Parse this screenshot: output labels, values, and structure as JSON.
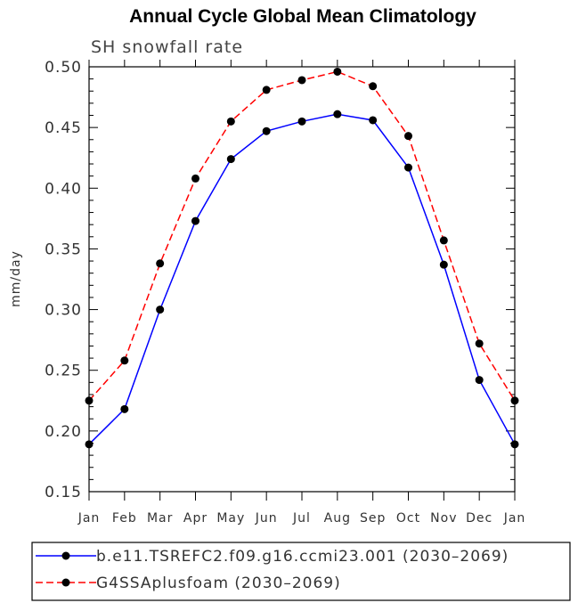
{
  "chart_data": {
    "type": "line",
    "title": "Annual Cycle Global Mean Climatology",
    "subtitle": "SH snowfall rate",
    "xlabel": "",
    "ylabel": "mm/day",
    "categories": [
      "Jan",
      "Feb",
      "Mar",
      "Apr",
      "May",
      "Jun",
      "Jul",
      "Aug",
      "Sep",
      "Oct",
      "Nov",
      "Dec",
      "Jan"
    ],
    "ylim": [
      0.15,
      0.5
    ],
    "yticks": [
      "0.15",
      "0.20",
      "0.25",
      "0.30",
      "0.35",
      "0.40",
      "0.45",
      "0.50"
    ],
    "grid": false,
    "legend_position": "bottom",
    "series": [
      {
        "name": "b.e11.TSREFC2.f09.g16.ccmi23.001 (2030–2069)",
        "color": "#0000ff",
        "line_style": "solid",
        "marker": "filled-circle",
        "values": [
          0.189,
          0.218,
          0.3,
          0.373,
          0.424,
          0.447,
          0.455,
          0.461,
          0.456,
          0.417,
          0.337,
          0.242,
          0.189
        ]
      },
      {
        "name": "G4SSAplusfoam (2030–2069)",
        "color": "#ff0000",
        "line_style": "dashed",
        "marker": "filled-circle",
        "values": [
          0.225,
          0.258,
          0.338,
          0.408,
          0.455,
          0.481,
          0.489,
          0.496,
          0.484,
          0.443,
          0.357,
          0.272,
          0.225
        ]
      }
    ]
  }
}
